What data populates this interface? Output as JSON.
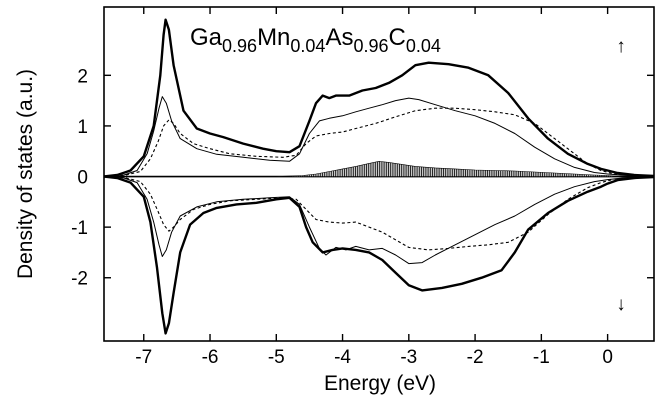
{
  "chart_data": {
    "type": "line",
    "title_parts": [
      {
        "text": "Ga",
        "sub": false
      },
      {
        "text": "0.96",
        "sub": true
      },
      {
        "text": "Mn",
        "sub": false
      },
      {
        "text": "0.04",
        "sub": true
      },
      {
        "text": "As",
        "sub": false
      },
      {
        "text": "0.96",
        "sub": true
      },
      {
        "text": "C",
        "sub": false
      },
      {
        "text": "0.04",
        "sub": true
      }
    ],
    "xlabel": "Energy (eV)",
    "ylabel": "Density of states (a.u.)",
    "xlim": [
      -7.6,
      0.7
    ],
    "ylim": [
      -3.25,
      3.35
    ],
    "x_ticks": [
      -7,
      -6,
      -5,
      -4,
      -3,
      -2,
      -1,
      0
    ],
    "y_ticks": [
      -2,
      -1,
      0,
      1,
      2
    ],
    "spin_up_symbol": "↑",
    "spin_down_symbol": "↓",
    "grid": false,
    "series": [
      {
        "key": "total",
        "style": "solid-thick",
        "up": [
          [
            -7.6,
            0
          ],
          [
            -7.4,
            0.03
          ],
          [
            -7.2,
            0.12
          ],
          [
            -7.0,
            0.4
          ],
          [
            -6.85,
            1.0
          ],
          [
            -6.75,
            2.0
          ],
          [
            -6.7,
            2.8
          ],
          [
            -6.67,
            3.1
          ],
          [
            -6.62,
            2.9
          ],
          [
            -6.55,
            2.2
          ],
          [
            -6.4,
            1.3
          ],
          [
            -6.2,
            0.95
          ],
          [
            -6.0,
            0.85
          ],
          [
            -5.8,
            0.78
          ],
          [
            -5.5,
            0.65
          ],
          [
            -5.2,
            0.55
          ],
          [
            -5.0,
            0.5
          ],
          [
            -4.8,
            0.48
          ],
          [
            -4.65,
            0.6
          ],
          [
            -4.5,
            1.1
          ],
          [
            -4.4,
            1.45
          ],
          [
            -4.3,
            1.6
          ],
          [
            -4.2,
            1.55
          ],
          [
            -4.1,
            1.6
          ],
          [
            -3.9,
            1.6
          ],
          [
            -3.7,
            1.7
          ],
          [
            -3.5,
            1.75
          ],
          [
            -3.3,
            1.85
          ],
          [
            -3.1,
            2.0
          ],
          [
            -2.9,
            2.2
          ],
          [
            -2.7,
            2.25
          ],
          [
            -2.4,
            2.22
          ],
          [
            -2.1,
            2.15
          ],
          [
            -1.8,
            2.0
          ],
          [
            -1.5,
            1.65
          ],
          [
            -1.2,
            1.15
          ],
          [
            -0.9,
            0.75
          ],
          [
            -0.6,
            0.45
          ],
          [
            -0.3,
            0.25
          ],
          [
            -0.1,
            0.15
          ],
          [
            0.0,
            0.12
          ],
          [
            0.15,
            0.07
          ],
          [
            0.4,
            0.03
          ],
          [
            0.7,
            0.01
          ]
        ],
        "down": [
          [
            -7.6,
            0
          ],
          [
            -7.4,
            -0.03
          ],
          [
            -7.2,
            -0.12
          ],
          [
            -7.0,
            -0.4
          ],
          [
            -6.9,
            -0.9
          ],
          [
            -6.8,
            -1.8
          ],
          [
            -6.72,
            -2.7
          ],
          [
            -6.67,
            -3.1
          ],
          [
            -6.62,
            -2.9
          ],
          [
            -6.55,
            -2.3
          ],
          [
            -6.45,
            -1.5
          ],
          [
            -6.3,
            -0.95
          ],
          [
            -6.1,
            -0.72
          ],
          [
            -5.9,
            -0.62
          ],
          [
            -5.6,
            -0.55
          ],
          [
            -5.3,
            -0.52
          ],
          [
            -5.0,
            -0.45
          ],
          [
            -4.8,
            -0.42
          ],
          [
            -4.65,
            -0.6
          ],
          [
            -4.55,
            -1.0
          ],
          [
            -4.45,
            -1.3
          ],
          [
            -4.3,
            -1.5
          ],
          [
            -4.15,
            -1.45
          ],
          [
            -4.0,
            -1.42
          ],
          [
            -3.8,
            -1.45
          ],
          [
            -3.6,
            -1.5
          ],
          [
            -3.4,
            -1.65
          ],
          [
            -3.2,
            -1.9
          ],
          [
            -3.0,
            -2.15
          ],
          [
            -2.8,
            -2.25
          ],
          [
            -2.5,
            -2.2
          ],
          [
            -2.2,
            -2.12
          ],
          [
            -1.9,
            -2.0
          ],
          [
            -1.6,
            -1.85
          ],
          [
            -1.4,
            -1.5
          ],
          [
            -1.2,
            -1.05
          ],
          [
            -0.9,
            -0.72
          ],
          [
            -0.6,
            -0.48
          ],
          [
            -0.3,
            -0.3
          ],
          [
            -0.1,
            -0.2
          ],
          [
            0.0,
            -0.14
          ],
          [
            0.15,
            -0.07
          ],
          [
            0.4,
            -0.03
          ],
          [
            0.7,
            -0.01
          ]
        ]
      },
      {
        "key": "partial-thin",
        "style": "solid-thin",
        "up": [
          [
            -7.6,
            0
          ],
          [
            -7.3,
            0.03
          ],
          [
            -7.1,
            0.12
          ],
          [
            -6.95,
            0.45
          ],
          [
            -6.85,
            0.9
          ],
          [
            -6.77,
            1.35
          ],
          [
            -6.72,
            1.58
          ],
          [
            -6.66,
            1.45
          ],
          [
            -6.58,
            1.1
          ],
          [
            -6.45,
            0.75
          ],
          [
            -6.2,
            0.55
          ],
          [
            -5.9,
            0.44
          ],
          [
            -5.5,
            0.38
          ],
          [
            -5.1,
            0.32
          ],
          [
            -4.8,
            0.3
          ],
          [
            -4.65,
            0.45
          ],
          [
            -4.5,
            0.85
          ],
          [
            -4.35,
            1.1
          ],
          [
            -4.2,
            1.15
          ],
          [
            -4.0,
            1.2
          ],
          [
            -3.8,
            1.28
          ],
          [
            -3.6,
            1.35
          ],
          [
            -3.4,
            1.42
          ],
          [
            -3.2,
            1.5
          ],
          [
            -3.0,
            1.55
          ],
          [
            -2.85,
            1.52
          ],
          [
            -2.6,
            1.42
          ],
          [
            -2.3,
            1.3
          ],
          [
            -2.0,
            1.2
          ],
          [
            -1.7,
            1.05
          ],
          [
            -1.4,
            0.85
          ],
          [
            -1.1,
            0.58
          ],
          [
            -0.8,
            0.35
          ],
          [
            -0.5,
            0.18
          ],
          [
            -0.2,
            0.08
          ],
          [
            0.0,
            0.05
          ],
          [
            0.3,
            0.02
          ],
          [
            0.7,
            0.0
          ]
        ],
        "down": [
          [
            -7.6,
            0
          ],
          [
            -7.3,
            -0.03
          ],
          [
            -7.1,
            -0.12
          ],
          [
            -6.95,
            -0.45
          ],
          [
            -6.85,
            -0.9
          ],
          [
            -6.77,
            -1.35
          ],
          [
            -6.72,
            -1.58
          ],
          [
            -6.66,
            -1.45
          ],
          [
            -6.58,
            -1.1
          ],
          [
            -6.45,
            -0.78
          ],
          [
            -6.2,
            -0.6
          ],
          [
            -5.9,
            -0.5
          ],
          [
            -5.5,
            -0.45
          ],
          [
            -5.1,
            -0.42
          ],
          [
            -4.8,
            -0.4
          ],
          [
            -4.65,
            -0.55
          ],
          [
            -4.5,
            -1.0
          ],
          [
            -4.35,
            -1.42
          ],
          [
            -4.25,
            -1.55
          ],
          [
            -4.1,
            -1.4
          ],
          [
            -3.95,
            -1.45
          ],
          [
            -3.8,
            -1.38
          ],
          [
            -3.6,
            -1.45
          ],
          [
            -3.4,
            -1.42
          ],
          [
            -3.2,
            -1.55
          ],
          [
            -3.0,
            -1.72
          ],
          [
            -2.8,
            -1.7
          ],
          [
            -2.6,
            -1.55
          ],
          [
            -2.3,
            -1.35
          ],
          [
            -2.0,
            -1.15
          ],
          [
            -1.7,
            -0.95
          ],
          [
            -1.4,
            -0.78
          ],
          [
            -1.1,
            -0.55
          ],
          [
            -0.8,
            -0.35
          ],
          [
            -0.5,
            -0.2
          ],
          [
            -0.2,
            -0.1
          ],
          [
            0.0,
            -0.06
          ],
          [
            0.3,
            -0.02
          ],
          [
            0.7,
            0.0
          ]
        ]
      },
      {
        "key": "partial-dotted",
        "style": "dotted",
        "up": [
          [
            -7.6,
            0
          ],
          [
            -7.3,
            0.02
          ],
          [
            -7.05,
            0.1
          ],
          [
            -6.9,
            0.35
          ],
          [
            -6.78,
            0.7
          ],
          [
            -6.7,
            1.0
          ],
          [
            -6.62,
            1.12
          ],
          [
            -6.55,
            1.05
          ],
          [
            -6.45,
            0.85
          ],
          [
            -6.25,
            0.65
          ],
          [
            -6.0,
            0.55
          ],
          [
            -5.7,
            0.45
          ],
          [
            -5.3,
            0.4
          ],
          [
            -4.9,
            0.38
          ],
          [
            -4.7,
            0.42
          ],
          [
            -4.55,
            0.65
          ],
          [
            -4.4,
            0.8
          ],
          [
            -4.2,
            0.85
          ],
          [
            -4.0,
            0.88
          ],
          [
            -3.8,
            0.95
          ],
          [
            -3.5,
            1.05
          ],
          [
            -3.2,
            1.18
          ],
          [
            -2.9,
            1.3
          ],
          [
            -2.6,
            1.35
          ],
          [
            -2.3,
            1.35
          ],
          [
            -2.0,
            1.32
          ],
          [
            -1.7,
            1.28
          ],
          [
            -1.4,
            1.22
          ],
          [
            -1.1,
            1.05
          ],
          [
            -0.8,
            0.75
          ],
          [
            -0.5,
            0.45
          ],
          [
            -0.3,
            0.25
          ],
          [
            -0.1,
            0.12
          ],
          [
            0.1,
            0.05
          ],
          [
            0.4,
            0.02
          ],
          [
            0.7,
            0.0
          ]
        ],
        "down": [
          [
            -7.6,
            0
          ],
          [
            -7.3,
            -0.02
          ],
          [
            -7.05,
            -0.1
          ],
          [
            -6.9,
            -0.35
          ],
          [
            -6.78,
            -0.7
          ],
          [
            -6.7,
            -0.95
          ],
          [
            -6.62,
            -1.08
          ],
          [
            -6.55,
            -1.0
          ],
          [
            -6.45,
            -0.85
          ],
          [
            -6.25,
            -0.65
          ],
          [
            -6.0,
            -0.55
          ],
          [
            -5.7,
            -0.48
          ],
          [
            -5.3,
            -0.45
          ],
          [
            -4.9,
            -0.42
          ],
          [
            -4.7,
            -0.45
          ],
          [
            -4.55,
            -0.65
          ],
          [
            -4.4,
            -0.85
          ],
          [
            -4.2,
            -0.9
          ],
          [
            -4.0,
            -0.92
          ],
          [
            -3.8,
            -0.9
          ],
          [
            -3.6,
            -1.0
          ],
          [
            -3.4,
            -1.1
          ],
          [
            -3.2,
            -1.25
          ],
          [
            -3.0,
            -1.4
          ],
          [
            -2.7,
            -1.45
          ],
          [
            -2.4,
            -1.42
          ],
          [
            -2.1,
            -1.38
          ],
          [
            -1.8,
            -1.35
          ],
          [
            -1.5,
            -1.3
          ],
          [
            -1.2,
            -1.1
          ],
          [
            -0.9,
            -0.75
          ],
          [
            -0.6,
            -0.45
          ],
          [
            -0.3,
            -0.22
          ],
          [
            -0.1,
            -0.12
          ],
          [
            0.1,
            -0.05
          ],
          [
            0.4,
            -0.02
          ],
          [
            0.7,
            0.0
          ]
        ]
      },
      {
        "key": "carbon-hatched",
        "style": "hatched-area",
        "up": [
          [
            -5.0,
            0
          ],
          [
            -4.6,
            0.02
          ],
          [
            -4.4,
            0.05
          ],
          [
            -4.2,
            0.1
          ],
          [
            -4.0,
            0.15
          ],
          [
            -3.8,
            0.2
          ],
          [
            -3.6,
            0.26
          ],
          [
            -3.45,
            0.3
          ],
          [
            -3.3,
            0.28
          ],
          [
            -3.1,
            0.24
          ],
          [
            -2.9,
            0.2
          ],
          [
            -2.6,
            0.17
          ],
          [
            -2.3,
            0.15
          ],
          [
            -2.0,
            0.13
          ],
          [
            -1.7,
            0.12
          ],
          [
            -1.4,
            0.11
          ],
          [
            -1.1,
            0.09
          ],
          [
            -0.8,
            0.07
          ],
          [
            -0.5,
            0.05
          ],
          [
            -0.2,
            0.03
          ],
          [
            0.0,
            0.02
          ],
          [
            0.2,
            0.0
          ]
        ],
        "down": []
      }
    ]
  }
}
